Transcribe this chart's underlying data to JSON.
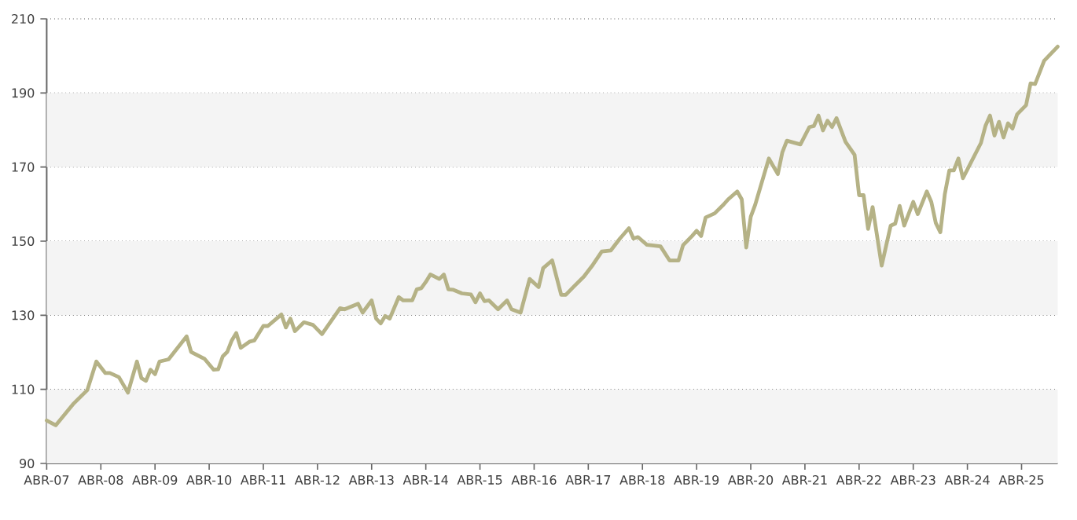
{
  "chart_data": {
    "type": "line",
    "x": [
      "2007-04",
      "2007-06",
      "2007-10",
      "2008-01",
      "2008-03",
      "2008-05",
      "2008-06",
      "2008-08",
      "2008-10",
      "2008-12",
      "2009-01",
      "2009-02",
      "2009-03",
      "2009-04",
      "2009-05",
      "2009-07",
      "2009-11",
      "2009-12",
      "2010-03",
      "2010-05",
      "2010-06",
      "2010-07",
      "2010-08",
      "2010-09",
      "2010-10",
      "2010-11",
      "2011-01",
      "2011-02",
      "2011-04",
      "2011-05",
      "2011-08",
      "2011-09",
      "2011-10",
      "2011-11",
      "2012-01",
      "2012-03",
      "2012-05",
      "2012-09",
      "2012-10",
      "2013-01",
      "2013-02",
      "2013-04",
      "2013-05",
      "2013-06",
      "2013-07",
      "2013-08",
      "2013-10",
      "2013-11",
      "2014-01",
      "2014-02",
      "2014-03",
      "2014-04",
      "2014-05",
      "2014-07",
      "2014-08",
      "2014-09",
      "2014-10",
      "2014-12",
      "2015-02",
      "2015-03",
      "2015-04",
      "2015-05",
      "2015-06",
      "2015-08",
      "2015-10",
      "2015-11",
      "2016-01",
      "2016-03",
      "2016-05",
      "2016-06",
      "2016-08",
      "2016-10",
      "2016-11",
      "2017-01",
      "2017-03",
      "2017-05",
      "2017-07",
      "2017-09",
      "2017-11",
      "2018-01",
      "2018-02",
      "2018-03",
      "2018-05",
      "2018-08",
      "2018-10",
      "2018-12",
      "2019-01",
      "2019-03",
      "2019-04",
      "2019-05",
      "2019-06",
      "2019-08",
      "2019-10",
      "2019-11",
      "2020-01",
      "2020-02",
      "2020-03",
      "2020-04",
      "2020-05",
      "2020-08",
      "2020-10",
      "2020-11",
      "2020-12",
      "2021-03",
      "2021-05",
      "2021-06",
      "2021-07",
      "2021-08",
      "2021-09",
      "2021-10",
      "2021-11",
      "2022-01",
      "2022-03",
      "2022-04",
      "2022-05",
      "2022-06",
      "2022-07",
      "2022-09",
      "2022-11",
      "2022-12",
      "2023-01",
      "2023-02",
      "2023-04",
      "2023-05",
      "2023-07",
      "2023-08",
      "2023-09",
      "2023-10",
      "2023-11",
      "2023-12",
      "2024-01",
      "2024-02",
      "2024-03",
      "2024-07",
      "2024-08",
      "2024-09",
      "2024-10",
      "2024-11",
      "2024-12",
      "2025-01",
      "2025-02",
      "2025-03",
      "2025-05",
      "2025-06",
      "2025-07",
      "2025-09",
      "2025-12"
    ],
    "series": [
      {
        "color": "#b5b286",
        "values": [
          101.6,
          100.3,
          106.2,
          109.8,
          117.5,
          114.4,
          114.4,
          113.3,
          109.1,
          117.5,
          113,
          112.3,
          115.3,
          114.1,
          117.5,
          118.1,
          124.3,
          120.1,
          118.2,
          115.3,
          115.4,
          118.9,
          120.1,
          123.2,
          125.2,
          121.2,
          122.9,
          123.2,
          127.1,
          127.1,
          130.2,
          126.7,
          129.1,
          125.7,
          128.1,
          127.4,
          124.9,
          131.9,
          131.6,
          133.1,
          130.7,
          134.0,
          129.1,
          127.8,
          129.8,
          129.1,
          134.9,
          134.0,
          134.0,
          137.0,
          137.3,
          139.0,
          141.0,
          139.8,
          141.0,
          137.0,
          136.9,
          135.9,
          135.6,
          133.5,
          135.9,
          133.8,
          134.0,
          131.6,
          134.0,
          131.6,
          130.7,
          139.8,
          137.6,
          142.7,
          144.8,
          135.5,
          135.5,
          138.0,
          140.4,
          143.6,
          147.2,
          147.5,
          150.7,
          153.5,
          150.7,
          151.1,
          149.0,
          148.6,
          144.8,
          144.8,
          148.9,
          151.4,
          152.8,
          151.4,
          156.4,
          157.5,
          159.9,
          161.3,
          163.4,
          161.3,
          148.3,
          156.6,
          159.9,
          172.3,
          168.1,
          174.0,
          177.1,
          176.1,
          180.8,
          181.1,
          183.9,
          179.9,
          182.5,
          180.8,
          183.2,
          176.8,
          173.3,
          162.4,
          162.4,
          153.3,
          159.2,
          143.4,
          154.2,
          154.7,
          159.5,
          154.2,
          160.6,
          157.3,
          163.4,
          160.6,
          154.9,
          152.4,
          162.7,
          169.1,
          169.1,
          172.3,
          167.0,
          176.5,
          181.1,
          183.9,
          178.5,
          182.2,
          178.0,
          181.8,
          180.4,
          184.2,
          186.7,
          192.6,
          192.4,
          198.7,
          202.5
        ]
      }
    ],
    "xlim": [
      "2007-04",
      "2025-12"
    ],
    "xticks": [
      {
        "value": "2007-04",
        "label": "ABR-07"
      },
      {
        "value": "2008-04",
        "label": "ABR-08"
      },
      {
        "value": "2009-04",
        "label": "ABR-09"
      },
      {
        "value": "2010-04",
        "label": "ABR-10"
      },
      {
        "value": "2011-04",
        "label": "ABR-11"
      },
      {
        "value": "2012-04",
        "label": "ABR-12"
      },
      {
        "value": "2013-04",
        "label": "ABR-13"
      },
      {
        "value": "2014-04",
        "label": "ABR-14"
      },
      {
        "value": "2015-04",
        "label": "ABR-15"
      },
      {
        "value": "2016-04",
        "label": "ABR-16"
      },
      {
        "value": "2017-04",
        "label": "ABR-17"
      },
      {
        "value": "2018-04",
        "label": "ABR-18"
      },
      {
        "value": "2019-04",
        "label": "ABR-19"
      },
      {
        "value": "2020-04",
        "label": "ABR-20"
      },
      {
        "value": "2021-04",
        "label": "ABR-21"
      },
      {
        "value": "2022-04",
        "label": "ABR-22"
      },
      {
        "value": "2023-04",
        "label": "ABR-23"
      },
      {
        "value": "2024-04",
        "label": "ABR-24"
      },
      {
        "value": "2025-04",
        "label": "ABR-25"
      }
    ],
    "ylim": [
      90,
      210
    ],
    "yticks": [
      90,
      110,
      130,
      150,
      170,
      190,
      210
    ],
    "grid": "y",
    "bands": [
      {
        "axis": "y",
        "from": 90,
        "to": 110,
        "color": "#f4f4f4"
      },
      {
        "axis": "y",
        "from": 130,
        "to": 150,
        "color": "#f4f4f4"
      },
      {
        "axis": "y",
        "from": 170,
        "to": 190,
        "color": "#f4f4f4"
      }
    ],
    "marker": "none",
    "line_style": "solid"
  }
}
